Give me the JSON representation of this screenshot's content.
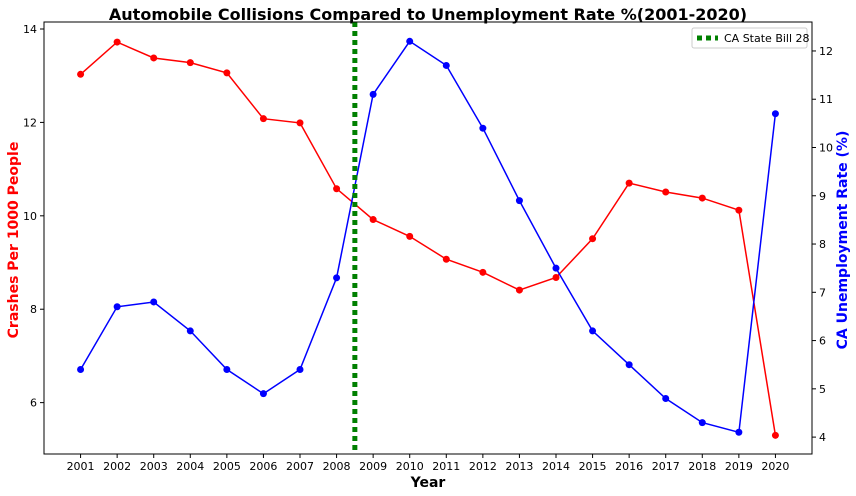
{
  "chart_data": {
    "type": "line",
    "title": "Automobile Collisions Compared to Unemployment Rate %(2001-2020)",
    "xlabel": "Year",
    "ylabel_left": "Crashes Per 1000 People",
    "ylabel_right": "CA Unemployment Rate (%)",
    "x": [
      "2001",
      "2002",
      "2003",
      "2004",
      "2005",
      "2006",
      "2007",
      "2008",
      "2009",
      "2010",
      "2011",
      "2012",
      "2013",
      "2014",
      "2015",
      "2016",
      "2017",
      "2018",
      "2019",
      "2020"
    ],
    "series": [
      {
        "axis": "left",
        "color": "#ff0000",
        "values": [
          13.03,
          13.72,
          13.38,
          13.28,
          13.06,
          12.08,
          11.99,
          10.58,
          9.92,
          9.56,
          9.07,
          8.79,
          8.41,
          8.68,
          9.51,
          10.7,
          10.51,
          10.38,
          10.12,
          5.3
        ]
      },
      {
        "axis": "right",
        "color": "#0000ff",
        "values": [
          5.4,
          6.7,
          6.8,
          6.2,
          5.4,
          4.9,
          5.4,
          7.3,
          11.1,
          12.2,
          11.7,
          10.4,
          8.9,
          7.5,
          6.2,
          5.5,
          4.8,
          4.3,
          4.1,
          10.7
        ]
      }
    ],
    "vline": {
      "x": 2008.5,
      "label": "CA State Bill 28",
      "color": "#008000",
      "style": "dotted"
    },
    "yticks_left": [
      6,
      8,
      10,
      12,
      14
    ],
    "yticks_right": [
      4,
      5,
      6,
      7,
      8,
      9,
      10,
      11,
      12
    ],
    "ylim_left": [
      4.9,
      14.15
    ],
    "ylim_right": [
      3.65,
      12.6
    ],
    "xlim": [
      2000,
      2021
    ],
    "legend_position": "top-right",
    "grid": false
  }
}
